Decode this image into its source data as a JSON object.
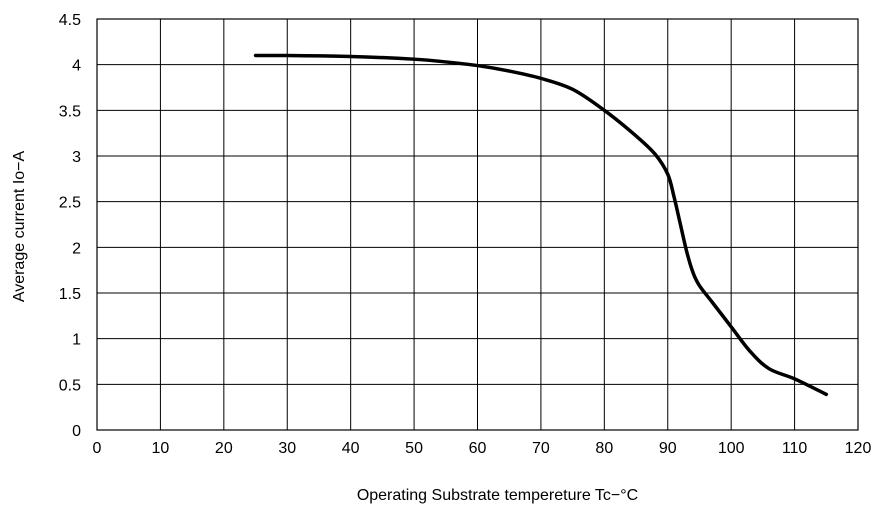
{
  "chart_data": {
    "type": "line",
    "title": "",
    "xlabel": "Operating Substrate tempereture Tc−°C",
    "ylabel": "Average current Io−A",
    "xlim": [
      0,
      120
    ],
    "ylim": [
      0,
      4.5
    ],
    "x_ticks": [
      0,
      10,
      20,
      30,
      40,
      50,
      60,
      70,
      80,
      90,
      100,
      110,
      120
    ],
    "y_ticks": [
      0,
      0.5,
      1,
      1.5,
      2,
      2.5,
      3,
      3.5,
      4,
      4.5
    ],
    "x_tick_labels": [
      "0",
      "10",
      "20",
      "30",
      "40",
      "50",
      "60",
      "70",
      "80",
      "90",
      "100",
      "110",
      "120"
    ],
    "y_tick_labels": [
      "0",
      "0.5",
      "1",
      "1.5",
      "2",
      "2.5",
      "3",
      "3.5",
      "4",
      "4.5"
    ],
    "grid": true,
    "series": [
      {
        "color": "#000000",
        "x": [
          25,
          30,
          40,
          50,
          55,
          60,
          65,
          70,
          75,
          80,
          85,
          88,
          90,
          91,
          92,
          93,
          94,
          95,
          97,
          100,
          103,
          106,
          110,
          115
        ],
        "y": [
          4.1,
          4.1,
          4.09,
          4.06,
          4.03,
          3.99,
          3.93,
          3.85,
          3.73,
          3.5,
          3.22,
          3.02,
          2.8,
          2.55,
          2.25,
          1.95,
          1.72,
          1.58,
          1.4,
          1.13,
          0.86,
          0.67,
          0.56,
          0.39
        ]
      }
    ]
  }
}
